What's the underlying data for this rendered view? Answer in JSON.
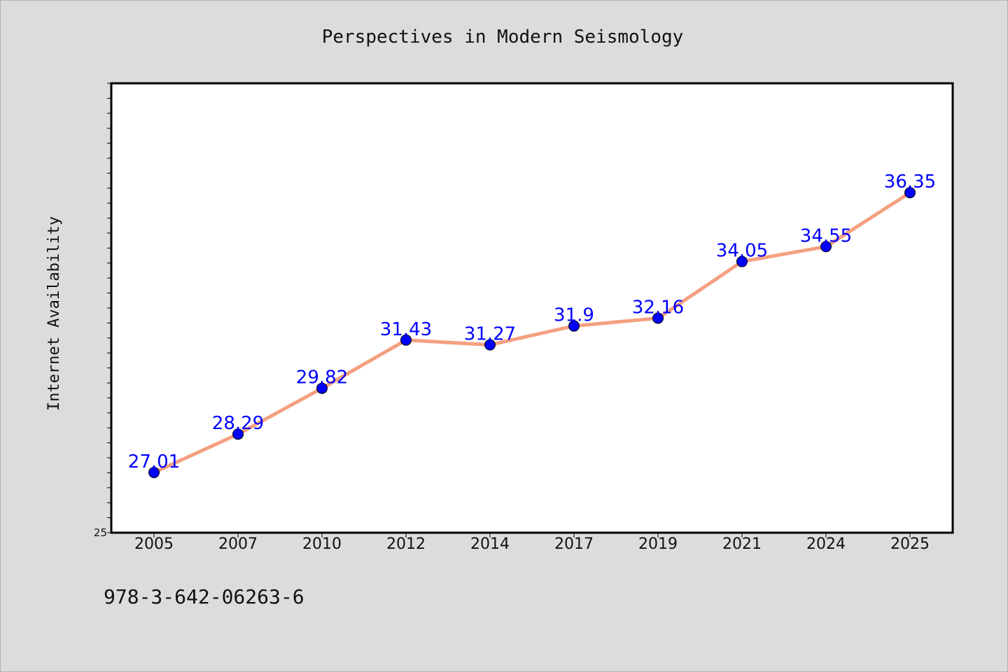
{
  "chart_data": {
    "type": "line",
    "title": "Perspectives in Modern Seismology",
    "xlabel": "",
    "ylabel": "Internet Availability",
    "categories": [
      "2005",
      "2007",
      "2010",
      "2012",
      "2014",
      "2017",
      "2019",
      "2021",
      "2024",
      "2025"
    ],
    "series": [
      {
        "values": [
          27.01,
          28.29,
          29.82,
          31.43,
          31.27,
          31.9,
          32.16,
          34.05,
          34.55,
          36.35
        ]
      }
    ],
    "data_labels": [
      "27.01",
      "28.29",
      "29.82",
      "31.43",
      "31.27",
      "31.9",
      "32.16",
      "34.05",
      "34.55",
      "36.35"
    ],
    "ylim": [
      25,
      40
    ],
    "y_tick_labels": [
      "25"
    ],
    "grid": false,
    "legend": "none",
    "colors": {
      "line": "#f4a080",
      "marker": "#0000ff",
      "label": "#0000ff",
      "background": "#dcdcdc",
      "plot_background": "#ffffff"
    }
  },
  "footer": {
    "isbn": "978-3-642-06263-6"
  }
}
